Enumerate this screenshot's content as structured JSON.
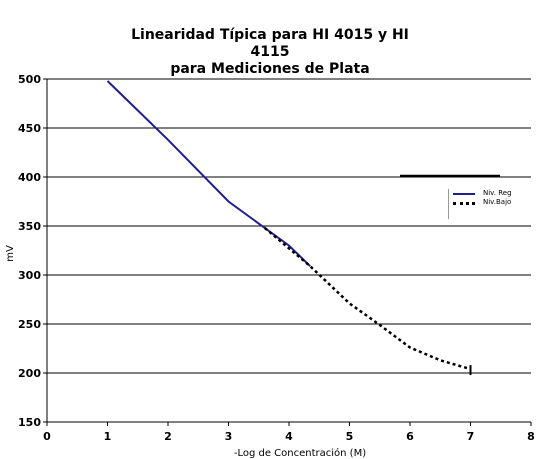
{
  "chart_data": {
    "type": "line",
    "title_line1": "Linearidad Típica para HI 4015 y HI 4115",
    "title_line2": "para Mediciones de Plata",
    "xlabel": "-Log de Concentración (M)",
    "ylabel": "mV",
    "xlim": [
      0,
      8
    ],
    "ylim": [
      150,
      500
    ],
    "x_ticks": [
      "0",
      "1",
      "2",
      "3",
      "4",
      "5",
      "6",
      "7",
      "8"
    ],
    "y_ticks": [
      "150",
      "200",
      "250",
      "300",
      "350",
      "400",
      "450",
      "500"
    ],
    "grid": true,
    "legend_position": "right",
    "series": [
      {
        "name": "Niv. Reg",
        "style": "solid",
        "color": "#1f1f8f",
        "x": [
          1,
          2,
          3,
          4,
          4.35
        ],
        "y": [
          498,
          438,
          375,
          330,
          309
        ]
      },
      {
        "name": "Niv.Bajo",
        "style": "dotted",
        "color": "#000000",
        "x": [
          3.6,
          4.35,
          5,
          5.5,
          6,
          6.5,
          7
        ],
        "y": [
          348,
          309,
          271,
          249,
          226,
          213,
          204
        ]
      }
    ]
  }
}
